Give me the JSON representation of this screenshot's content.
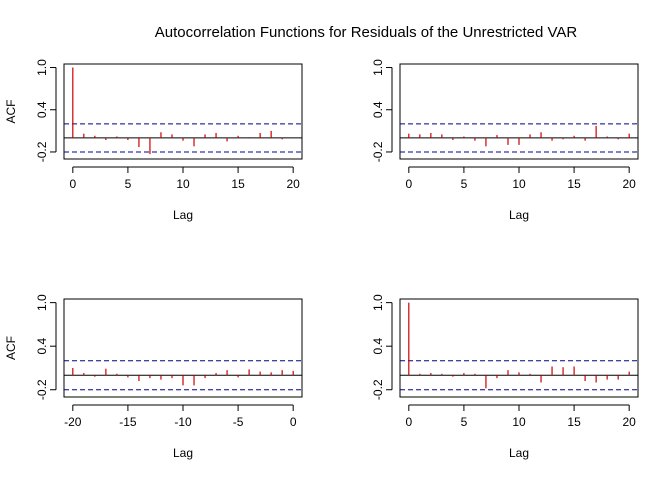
{
  "title": "Autocorrelation Functions for Residuals of the Unrestricted VAR",
  "colors": {
    "spike": "#cc0000",
    "ci": "#00008b",
    "axis": "#000000"
  },
  "chart_data": [
    {
      "type": "bar",
      "panel": "top-left",
      "xlabel": "Lag",
      "ylabel": "ACF",
      "xlim": [
        -0.8,
        20.8
      ],
      "ylim": [
        -0.3,
        1.05
      ],
      "xticks": [
        0,
        5,
        10,
        15,
        20
      ],
      "yticks": [
        -0.2,
        0.4,
        1.0
      ],
      "ytick_labels": [
        "-0.2",
        "0.4",
        "1.0"
      ],
      "ci": 0.2,
      "x": [
        0,
        1,
        2,
        3,
        4,
        5,
        6,
        7,
        8,
        9,
        10,
        11,
        12,
        13,
        14,
        15,
        16,
        17,
        18,
        19,
        20
      ],
      "values": [
        1.0,
        0.06,
        0.03,
        -0.03,
        0.02,
        -0.03,
        -0.13,
        -0.23,
        0.08,
        0.05,
        -0.04,
        -0.12,
        0.05,
        0.07,
        -0.05,
        0.03,
        0.01,
        0.07,
        0.1,
        -0.02,
        0.0
      ]
    },
    {
      "type": "bar",
      "panel": "top-right",
      "xlabel": "Lag",
      "ylabel": "",
      "xlim": [
        -0.8,
        20.8
      ],
      "ylim": [
        -0.3,
        1.05
      ],
      "xticks": [
        0,
        5,
        10,
        15,
        20
      ],
      "yticks": [
        -0.2,
        0.4,
        1.0
      ],
      "ytick_labels": [
        "-0.2",
        "0.4",
        "1.0"
      ],
      "ci": 0.2,
      "x": [
        0,
        1,
        2,
        3,
        4,
        5,
        6,
        7,
        8,
        9,
        10,
        11,
        12,
        13,
        14,
        15,
        16,
        17,
        18,
        19,
        20
      ],
      "values": [
        0.06,
        0.05,
        0.07,
        0.05,
        -0.03,
        0.02,
        -0.04,
        -0.12,
        0.04,
        -0.1,
        -0.1,
        0.05,
        0.08,
        -0.04,
        -0.02,
        0.03,
        -0.04,
        0.17,
        0.02,
        -0.02,
        0.06
      ]
    },
    {
      "type": "bar",
      "panel": "bottom-left",
      "xlabel": "Lag",
      "ylabel": "ACF",
      "xlim": [
        -20.8,
        0.8
      ],
      "ylim": [
        -0.3,
        1.05
      ],
      "xticks": [
        -20,
        -15,
        -10,
        -5,
        0
      ],
      "yticks": [
        -0.2,
        0.4,
        1.0
      ],
      "ytick_labels": [
        "-0.2",
        "0.4",
        "1.0"
      ],
      "ci": 0.2,
      "x": [
        -20,
        -19,
        -18,
        -17,
        -16,
        -15,
        -14,
        -13,
        -12,
        -11,
        -10,
        -9,
        -8,
        -7,
        -6,
        -5,
        -4,
        -3,
        -2,
        -1,
        0
      ],
      "values": [
        0.1,
        0.03,
        -0.02,
        0.09,
        0.02,
        -0.03,
        -0.08,
        -0.04,
        -0.06,
        -0.04,
        -0.14,
        -0.14,
        -0.04,
        0.03,
        0.07,
        -0.03,
        0.08,
        0.05,
        0.04,
        0.07,
        0.06
      ]
    },
    {
      "type": "bar",
      "panel": "bottom-right",
      "xlabel": "Lag",
      "ylabel": "",
      "xlim": [
        -0.8,
        20.8
      ],
      "ylim": [
        -0.3,
        1.05
      ],
      "xticks": [
        0,
        5,
        10,
        15,
        20
      ],
      "yticks": [
        -0.2,
        0.4,
        1.0
      ],
      "ytick_labels": [
        "-0.2",
        "0.4",
        "1.0"
      ],
      "ci": 0.2,
      "x": [
        0,
        1,
        2,
        3,
        4,
        5,
        6,
        7,
        8,
        9,
        10,
        11,
        12,
        13,
        14,
        15,
        16,
        17,
        18,
        19,
        20
      ],
      "values": [
        1.0,
        0.02,
        0.03,
        0.02,
        -0.02,
        0.03,
        0.02,
        -0.18,
        -0.04,
        0.07,
        0.04,
        0.02,
        -0.1,
        0.12,
        0.11,
        0.12,
        -0.08,
        -0.1,
        -0.06,
        -0.06,
        0.05
      ]
    }
  ]
}
